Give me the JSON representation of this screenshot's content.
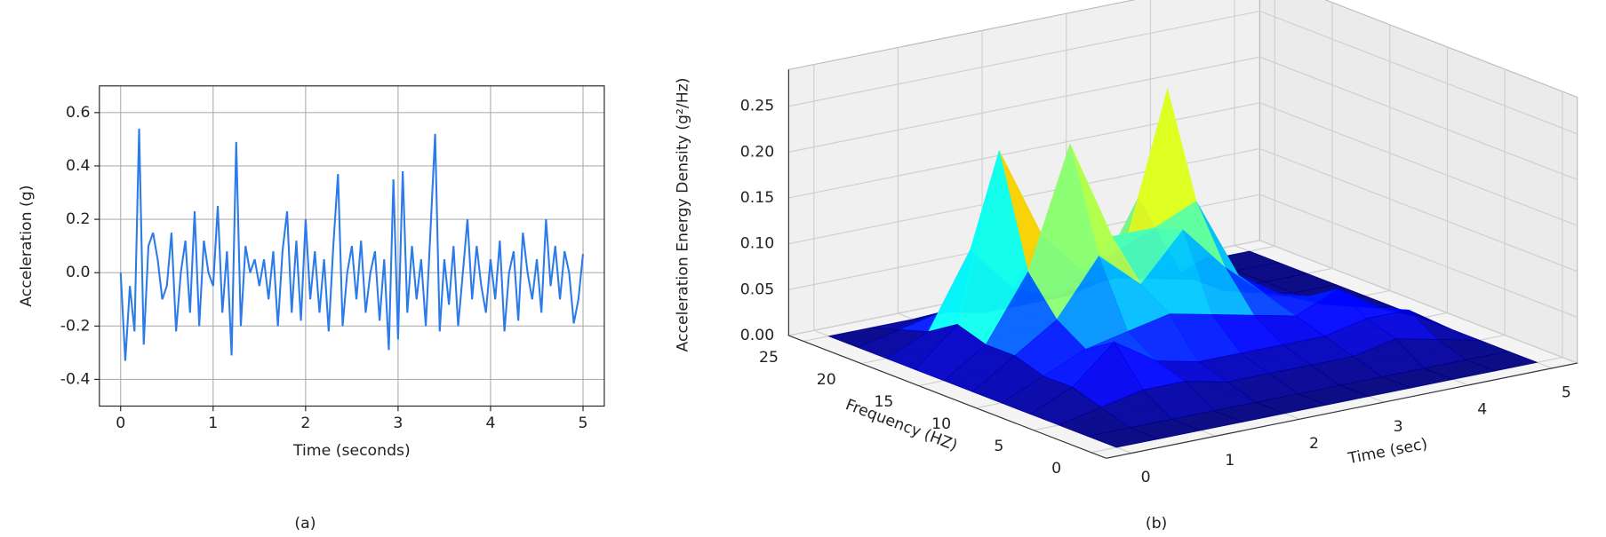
{
  "chart_data": [
    {
      "type": "line",
      "caption": "(a)",
      "xlabel": "Time (seconds)",
      "ylabel": "Acceleration (g)",
      "color": "#2b7bea",
      "grid": true,
      "xlim": [
        -0.23,
        5.23
      ],
      "ylim": [
        -0.5,
        0.7
      ],
      "xticks": [
        0,
        1,
        2,
        3,
        4,
        5
      ],
      "yticks": [
        -0.4,
        -0.2,
        {
          "value": 0,
          "label": "0.0"
        },
        0.2,
        0.4,
        0.6
      ],
      "x": [
        0,
        0.05,
        0.1,
        0.15,
        0.2,
        0.25,
        0.3,
        0.35,
        0.4,
        0.45,
        0.5,
        0.55,
        0.6,
        0.65,
        0.7,
        0.75,
        0.8,
        0.85,
        0.9,
        0.95,
        1,
        1.05,
        1.1,
        1.15,
        1.2,
        1.25,
        1.3,
        1.35,
        1.4,
        1.45,
        1.5,
        1.55,
        1.6,
        1.65,
        1.7,
        1.75,
        1.8,
        1.85,
        1.9,
        1.95,
        2,
        2.05,
        2.1,
        2.15,
        2.2,
        2.25,
        2.3,
        2.35,
        2.4,
        2.45,
        2.5,
        2.55,
        2.6,
        2.65,
        2.7,
        2.75,
        2.8,
        2.85,
        2.9,
        2.95,
        3,
        3.05,
        3.1,
        3.15,
        3.2,
        3.25,
        3.3,
        3.35,
        3.4,
        3.45,
        3.5,
        3.55,
        3.6,
        3.65,
        3.7,
        3.75,
        3.8,
        3.85,
        3.9,
        3.95,
        4,
        4.05,
        4.1,
        4.15,
        4.2,
        4.25,
        4.3,
        4.35,
        4.4,
        4.45,
        4.5,
        4.55,
        4.6,
        4.65,
        4.7,
        4.75,
        4.8,
        4.85,
        4.9,
        4.95,
        5
      ],
      "values": [
        0,
        -0.33,
        -0.05,
        -0.22,
        0.54,
        -0.27,
        0.1,
        0.15,
        0.05,
        -0.1,
        -0.05,
        0.15,
        -0.22,
        0,
        0.12,
        -0.15,
        0.23,
        -0.2,
        0.12,
        0,
        -0.05,
        0.25,
        -0.15,
        0.08,
        -0.31,
        0.49,
        -0.2,
        0.1,
        0,
        0.05,
        -0.05,
        0.05,
        -0.1,
        0.08,
        -0.2,
        0.08,
        0.23,
        -0.15,
        0.12,
        -0.18,
        0.2,
        -0.1,
        0.08,
        -0.15,
        0.05,
        -0.22,
        0.1,
        0.37,
        -0.2,
        0,
        0.1,
        -0.1,
        0.12,
        -0.15,
        0,
        0.08,
        -0.18,
        0.05,
        -0.29,
        0.35,
        -0.25,
        0.38,
        -0.15,
        0.1,
        -0.1,
        0.05,
        -0.2,
        0.15,
        0.52,
        -0.22,
        0.05,
        -0.12,
        0.1,
        -0.2,
        0,
        0.2,
        -0.1,
        0.1,
        -0.05,
        -0.15,
        0.05,
        -0.1,
        0.12,
        -0.22,
        0,
        0.08,
        -0.18,
        0.15,
        0,
        -0.1,
        0.05,
        -0.15,
        0.2,
        -0.05,
        0.1,
        -0.1,
        0.08,
        0,
        -0.19,
        -0.1,
        0.07
      ]
    },
    {
      "type": "surface",
      "caption": "(b)",
      "xlabel": "Time (sec)",
      "ylabel": "Frequency (HZ)",
      "zlabel": "Acceleration Energy Density (g²/Hz)",
      "colormap": "jet",
      "xlim": [
        -0.3,
        5.3
      ],
      "ylim": [
        -1.3,
        26.3
      ],
      "zlim": [
        0,
        0.29
      ],
      "xticks": [
        0,
        1,
        2,
        3,
        4,
        5
      ],
      "yticks": [
        0,
        5,
        10,
        15,
        20,
        25
      ],
      "zticks": [
        {
          "value": 0,
          "label": "0.00"
        },
        0.05,
        {
          "value": 0.1,
          "label": "0.10"
        },
        0.15,
        {
          "value": 0.2,
          "label": "0.20"
        },
        0.25
      ],
      "x": [
        0,
        0.5,
        1,
        1.5,
        2,
        2.5,
        3,
        3.5,
        4,
        4.5,
        5
      ],
      "y": [
        0,
        2.5,
        5,
        7.5,
        10,
        12.5,
        15,
        17.5,
        20,
        22.5,
        25
      ],
      "z": [
        [
          0,
          0,
          0,
          0,
          0,
          0,
          0,
          0,
          0,
          0,
          0
        ],
        [
          0,
          0,
          0,
          0,
          0,
          0,
          0,
          0,
          0,
          0,
          0
        ],
        [
          0,
          0.01,
          0.02,
          0.02,
          0.01,
          0.01,
          0.01,
          0.01,
          0.02,
          0.01,
          0
        ],
        [
          0,
          0.02,
          0.06,
          0.03,
          0.02,
          0.02,
          0.02,
          0.02,
          0.03,
          0.03,
          0
        ],
        [
          0,
          0.02,
          0.04,
          0.05,
          0.06,
          0.05,
          0.04,
          0.03,
          0.05,
          0.02,
          0
        ],
        [
          0,
          0.03,
          0.06,
          0.12,
          0.08,
          0.13,
          0.08,
          0.04,
          0.03,
          0.01,
          0
        ],
        [
          0,
          0.03,
          0.1,
          0.23,
          0.12,
          0.12,
          0.14,
          0.05,
          0.02,
          0,
          0
        ],
        [
          0,
          0.04,
          0.22,
          0.12,
          0.07,
          0.09,
          0.25,
          0.06,
          0.01,
          0,
          0
        ],
        [
          0,
          0.02,
          0.1,
          0.05,
          0.03,
          0.04,
          0.12,
          0.03,
          0,
          0,
          0
        ],
        [
          0,
          0.01,
          0.02,
          0.01,
          0.01,
          0.01,
          0.02,
          0.01,
          0,
          0,
          0
        ],
        [
          0,
          0,
          0,
          0,
          0,
          0,
          0,
          0,
          0,
          0,
          0
        ]
      ]
    }
  ]
}
